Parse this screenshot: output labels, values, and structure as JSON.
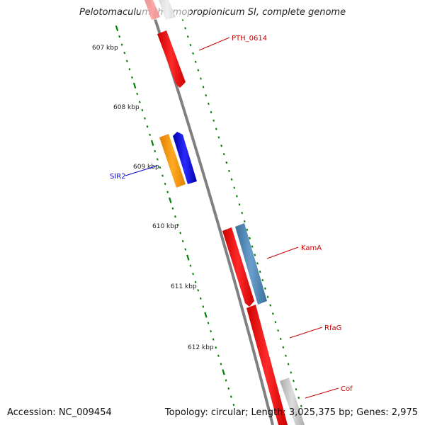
{
  "title": "Pelotomaculum thermopropionicum SI, complete genome",
  "footer": {
    "accession": "Accession: NC_009454",
    "summary": "Topology: circular; Length: 3,025,375 bp; Genes: 2,975"
  },
  "ruler": [
    "607 kbp",
    "608 kbp",
    "609 kbp",
    "610 kbp",
    "611 kbp",
    "612 kbp"
  ],
  "genes": [
    {
      "name": "PTH_0614",
      "color": "#cc0000"
    },
    {
      "name": "SIR2",
      "color": "#0000cc"
    },
    {
      "name": "KamA",
      "color": "#cc0000"
    },
    {
      "name": "RfaG",
      "color": "#cc0000"
    },
    {
      "name": "Cof",
      "color": "#cc0000"
    }
  ],
  "colors": {
    "red": "#ff0000",
    "blue": "#0000ff",
    "orange": "#ff9900",
    "steelblue": "#4682b4",
    "gray": "#bbbbbb",
    "backbone": "#808080",
    "tick": "#008000"
  }
}
